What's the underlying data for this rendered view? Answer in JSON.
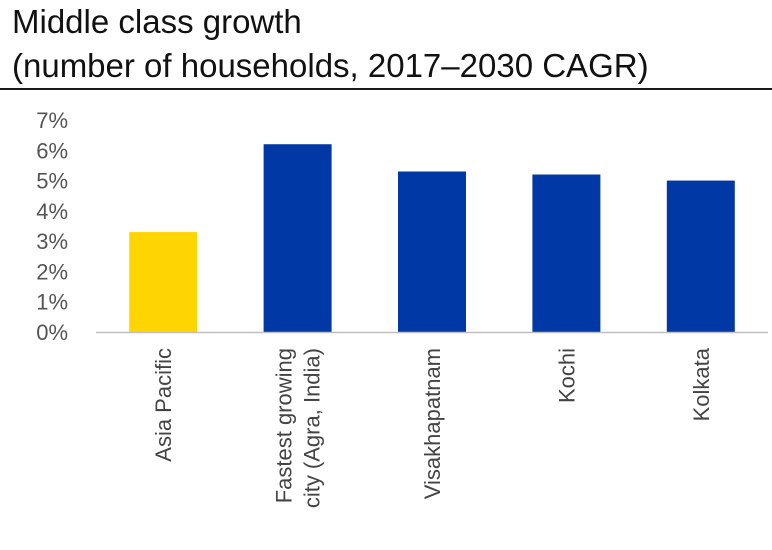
{
  "chart_data": {
    "type": "bar",
    "title": "Middle class growth",
    "subtitle": "(number of households, 2017–2030 CAGR)",
    "categories": [
      [
        "Asia Pacific"
      ],
      [
        "Fastest growing",
        "city (Agra, India)"
      ],
      [
        "Visakhapatnam"
      ],
      [
        "Kochi"
      ],
      [
        "Kolkata"
      ]
    ],
    "values": [
      3.3,
      6.2,
      5.3,
      5.2,
      5.0
    ],
    "value_unit": "%",
    "colors": [
      "#FFD500",
      "#0039A6",
      "#0039A6",
      "#0039A6",
      "#0039A6"
    ],
    "ylim": [
      0,
      7
    ],
    "yticks": [
      0,
      1,
      2,
      3,
      4,
      5,
      6,
      7
    ],
    "ytick_labels": [
      "0%",
      "1%",
      "2%",
      "3%",
      "4%",
      "5%",
      "6%",
      "7%"
    ],
    "xlabel": "",
    "ylabel": "",
    "grid": false,
    "legend": "none"
  }
}
